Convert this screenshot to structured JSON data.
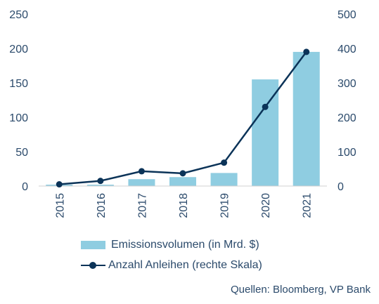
{
  "colors": {
    "bar": "#8fcde1",
    "line": "#0b3358",
    "text": "#2b4a6b",
    "axis": "#d0d0d0"
  },
  "chart_data": {
    "type": "bar",
    "categories": [
      "2015",
      "2016",
      "2017",
      "2018",
      "2019",
      "2020",
      "2021"
    ],
    "series": [
      {
        "name": "Emissionsvolumen (in Mrd. $)",
        "type": "bar",
        "axis": "left",
        "values": [
          2,
          2,
          10,
          13,
          19,
          155,
          195
        ]
      },
      {
        "name": "Anzahl Anleihen (rechte Skala)",
        "type": "line",
        "axis": "right",
        "values": [
          5,
          15,
          43,
          37,
          68,
          230,
          390
        ]
      }
    ],
    "y_left": {
      "min": 0,
      "max": 250,
      "ticks": [
        "0",
        "50",
        "100",
        "150",
        "200",
        "250"
      ]
    },
    "y_right": {
      "min": 0,
      "max": 500,
      "ticks": [
        "0",
        "100",
        "200",
        "300",
        "400",
        "500"
      ]
    },
    "grid": false,
    "legend_position": "bottom"
  },
  "legend": {
    "bar_label": "Emissionsvolumen (in Mrd. $)",
    "line_label": "Anzahl Anleihen (rechte Skala)"
  },
  "source": "Quellen: Bloomberg, VP Bank"
}
